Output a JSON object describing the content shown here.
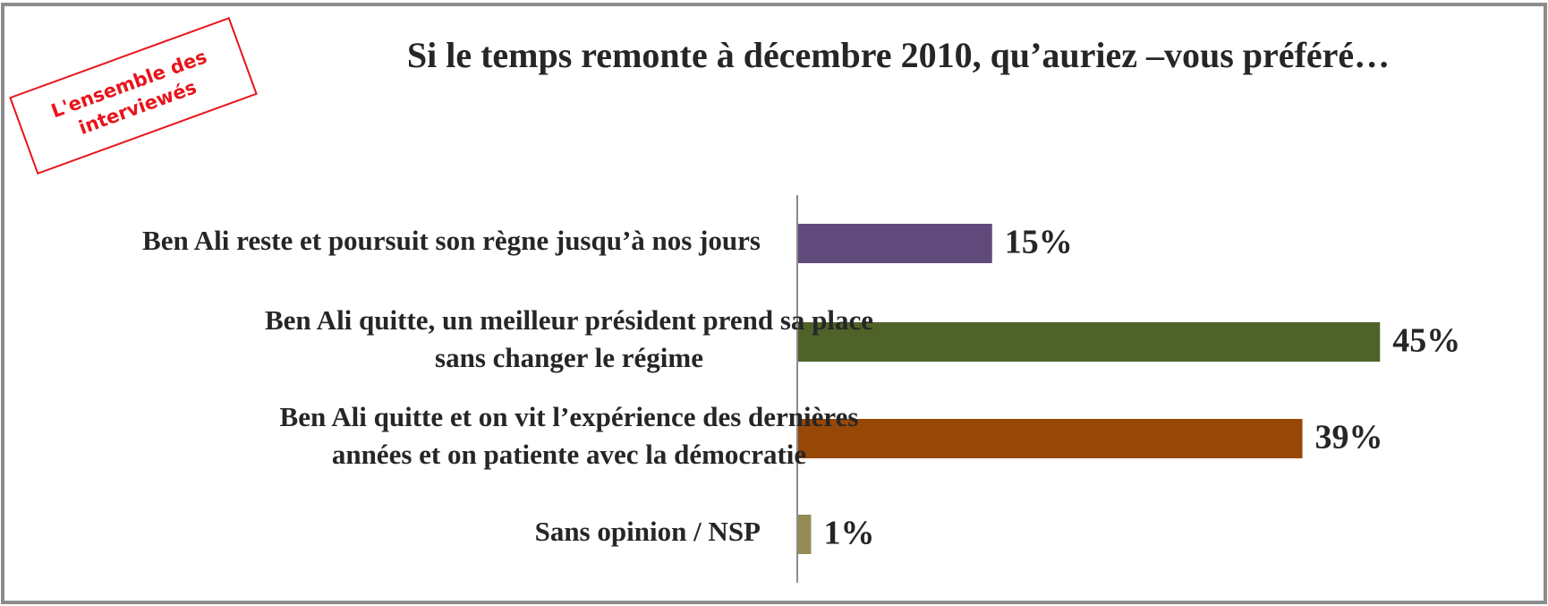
{
  "chart_data": {
    "type": "barh",
    "title": "Si le temps remonte à décembre 2010, qu’auriez –vous préféré…",
    "annotation": "L'ensemble des\ninterviewés",
    "categories": [
      "Ben Ali reste et poursuit son règne jusqu’à nos jours",
      "Ben Ali quitte, un meilleur président  prend sa place\nsans changer le régime",
      "Ben Ali quitte et on vit l’expérience des dernières\nannées et on patiente avec la démocratie",
      "Sans opinion / NSP"
    ],
    "values": [
      15,
      45,
      39,
      1
    ],
    "value_labels": [
      "15%",
      "45%",
      "39%",
      "1%"
    ],
    "colors": [
      "#604a7b",
      "#4f6228",
      "#974706",
      "#948a54"
    ]
  }
}
